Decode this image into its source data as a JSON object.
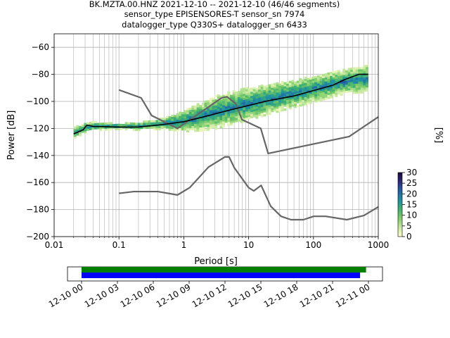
{
  "title": {
    "line1": "BK.MZTA.00.HNZ   2021-12-10 -- 2021-12-10  (46/46 segments)",
    "line2": "sensor_type EPISENSORES-T sensor_sn 7974",
    "line3": "datalogger_type Q330S+ datalogger_sn 6433"
  },
  "chart_data": [
    {
      "type": "heatmap",
      "title": "BK.MZTA.00.HNZ   2021-12-10 -- 2021-12-10  (46/46 segments)",
      "xlabel": "Period [s]",
      "ylabel": "Power [dB]",
      "xscale": "log",
      "xlim": [
        0.01,
        1000
      ],
      "ylim": [
        -200,
        -50
      ],
      "grid": true,
      "xticks": [
        0.01,
        0.1,
        1,
        10,
        100,
        1000
      ],
      "xtick_labels": [
        "0.01",
        "0.1",
        "1",
        "10",
        "100",
        "1000"
      ],
      "yticks": [
        -200,
        -180,
        -160,
        -140,
        -120,
        -100,
        -80,
        -60
      ],
      "ytick_labels": [
        "−200",
        "−180",
        "−160",
        "−140",
        "−120",
        "−100",
        "−80",
        "−60"
      ],
      "colorbar": {
        "label": "[%]",
        "range": [
          0,
          30
        ],
        "ticks": [
          0,
          5,
          10,
          15,
          20,
          25,
          30
        ],
        "colormap": [
          "#ffffcc",
          "#c7e9a0",
          "#7fcd6a",
          "#41b16e",
          "#1d91a0",
          "#2460a7",
          "#2d2a7a",
          "#1a0838"
        ]
      },
      "model_color": "#666666",
      "mode_color": "#000000",
      "high_noise_model": [
        [
          0.1,
          -91.5
        ],
        [
          0.22,
          -97.4
        ],
        [
          0.32,
          -110.5
        ],
        [
          0.8,
          -120
        ],
        [
          3.8,
          -97.5
        ],
        [
          4.6,
          -96.5
        ],
        [
          6.3,
          -101.5
        ],
        [
          7.9,
          -113.5
        ],
        [
          15.4,
          -120
        ],
        [
          20,
          -138.5
        ],
        [
          354.8,
          -126
        ],
        [
          1000,
          -111.5
        ]
      ],
      "low_noise_model": [
        [
          0.1,
          -168
        ],
        [
          0.17,
          -166.7
        ],
        [
          0.4,
          -166.7
        ],
        [
          0.8,
          -169.2
        ],
        [
          1.24,
          -163.7
        ],
        [
          2.4,
          -148.6
        ],
        [
          4.3,
          -141.1
        ],
        [
          5,
          -141.1
        ],
        [
          6,
          -149
        ],
        [
          10,
          -163.8
        ],
        [
          12,
          -166.2
        ],
        [
          15.6,
          -162.1
        ],
        [
          21.9,
          -177.5
        ],
        [
          31.6,
          -185
        ],
        [
          45,
          -187.5
        ],
        [
          70,
          -187.5
        ],
        [
          101,
          -185
        ],
        [
          154,
          -185
        ],
        [
          328,
          -187.5
        ],
        [
          600,
          -184.4
        ],
        [
          1000,
          -178
        ]
      ],
      "mode": [
        [
          0.02,
          -124
        ],
        [
          0.025,
          -122
        ],
        [
          0.028,
          -121
        ],
        [
          0.032,
          -117.5
        ],
        [
          0.04,
          -118.5
        ],
        [
          0.1,
          -119
        ],
        [
          0.2,
          -119
        ],
        [
          0.5,
          -117
        ],
        [
          1,
          -115
        ],
        [
          2,
          -111.5
        ],
        [
          5,
          -106.5
        ],
        [
          10,
          -103
        ],
        [
          20,
          -99.5
        ],
        [
          50,
          -96
        ],
        [
          100,
          -92
        ],
        [
          200,
          -88
        ],
        [
          300,
          -84
        ],
        [
          500,
          -80
        ],
        [
          700,
          -80
        ]
      ],
      "density_center": [
        [
          0.02,
          -124
        ],
        [
          0.025,
          -122
        ],
        [
          0.03,
          -120
        ],
        [
          0.04,
          -119
        ],
        [
          0.1,
          -119
        ],
        [
          0.2,
          -119
        ],
        [
          0.5,
          -117
        ],
        [
          1,
          -115
        ],
        [
          2,
          -111.5
        ],
        [
          5,
          -106
        ],
        [
          10,
          -102.5
        ],
        [
          20,
          -99
        ],
        [
          50,
          -95
        ],
        [
          100,
          -91.5
        ],
        [
          200,
          -88
        ],
        [
          400,
          -85
        ],
        [
          700,
          -84
        ]
      ],
      "density_spread_db": [
        [
          0.02,
          4
        ],
        [
          0.1,
          2
        ],
        [
          0.5,
          4
        ],
        [
          1,
          8
        ],
        [
          3,
          12
        ],
        [
          10,
          12
        ],
        [
          50,
          10
        ],
        [
          300,
          9
        ],
        [
          700,
          10
        ]
      ]
    },
    {
      "type": "timeline",
      "xlim": [
        "12-10 00",
        "12-11 00"
      ],
      "ticks": [
        "12-10 00",
        "12-10 03",
        "12-10 06",
        "12-10 09",
        "12-10 12",
        "12-10 15",
        "12-10 18",
        "12-10 21",
        "12-11 00"
      ],
      "bars": [
        {
          "color": "#008000",
          "start_hours": 0,
          "end_hours": 23.8
        },
        {
          "color": "#0000ff",
          "start_hours": 0,
          "end_hours": 23.3
        }
      ]
    }
  ]
}
